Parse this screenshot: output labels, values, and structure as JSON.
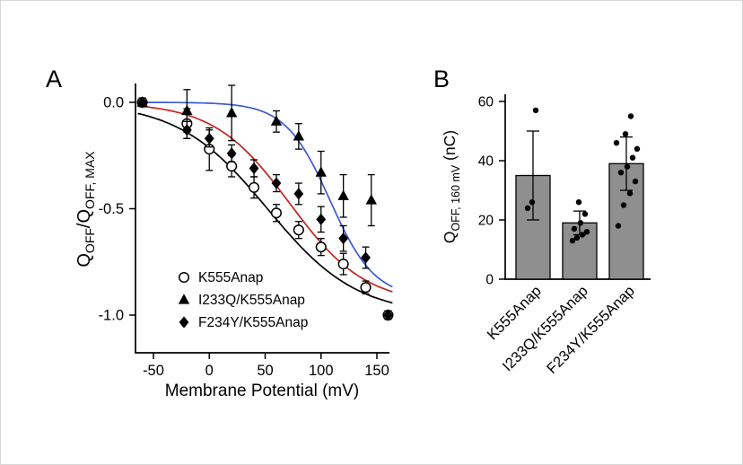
{
  "panel_labels": {
    "a": "A",
    "b": "B"
  },
  "chart_data": [
    {
      "type": "scatter",
      "panel": "A",
      "xlabel": "Membrane Potential (mV)",
      "ylabel": "QOFF/QOFF, MAX",
      "ylabel_parts": [
        {
          "t": "Q"
        },
        {
          "t": "OFF",
          "sub": true
        },
        {
          "t": "/Q"
        },
        {
          "t": "OFF, MAX",
          "sub": true
        }
      ],
      "xlim": [
        -70,
        172
      ],
      "ylim": [
        -1.08,
        0.13
      ],
      "x_ticks": [
        -50,
        0,
        50,
        100,
        150
      ],
      "y_ticks": [
        0,
        -0.5,
        -1
      ],
      "y_tick_labels": [
        "0.0",
        "-0.5",
        "-1.0"
      ],
      "grid": false,
      "legend_position": "inside-lower-left",
      "series": [
        {
          "name": "K555Anap",
          "marker": "circle-open",
          "marker_color": "#000000",
          "line_color": "#000000",
          "fit": {
            "v_half": 52,
            "k": 40,
            "amp": 1.0
          },
          "x": [
            -60,
            -20,
            0,
            20,
            40,
            60,
            80,
            100,
            120,
            140,
            160
          ],
          "y": [
            0,
            -0.1,
            -0.22,
            -0.3,
            -0.4,
            -0.52,
            -0.6,
            -0.68,
            -0.76,
            -0.87,
            -1
          ],
          "err": [
            0.02,
            0.07,
            0.1,
            0.05,
            0.05,
            0.04,
            0.04,
            0.04,
            0.05,
            0.03,
            0.02
          ]
        },
        {
          "name": "I233Q/K555Anap",
          "marker": "triangle-filled",
          "marker_color": "#000000",
          "line_color": "#3c5bd1",
          "fit": {
            "v_half": 108,
            "k": 20,
            "amp": 0.92
          },
          "x": [
            -60,
            -20,
            20,
            60,
            80,
            100,
            120,
            145
          ],
          "y": [
            0,
            -0.04,
            -0.05,
            -0.09,
            -0.16,
            -0.33,
            -0.44,
            -0.46
          ],
          "err": [
            0.02,
            0.1,
            0.13,
            0.05,
            0.06,
            0.1,
            0.1,
            0.12
          ]
        },
        {
          "name": "F234Y/K555Anap",
          "marker": "diamond-filled",
          "marker_color": "#000000",
          "line_color": "#c1271d",
          "fit": {
            "v_half": 72,
            "k": 34,
            "amp": 0.95
          },
          "x": [
            -60,
            -20,
            0,
            20,
            40,
            60,
            80,
            100,
            120,
            140,
            160
          ],
          "y": [
            0,
            -0.13,
            -0.17,
            -0.24,
            -0.31,
            -0.38,
            -0.43,
            -0.55,
            -0.64,
            -0.73,
            -1
          ],
          "err": [
            0.02,
            0.04,
            0.04,
            0.04,
            0.04,
            0.04,
            0.05,
            0.06,
            0.06,
            0.05,
            0.02
          ]
        }
      ]
    },
    {
      "type": "bar",
      "panel": "B",
      "ylabel": "QOFF, 160 mV (nC)",
      "ylabel_parts": [
        {
          "t": "Q"
        },
        {
          "t": "OFF, 160 mV",
          "sub": true
        },
        {
          "t": " (nC)"
        }
      ],
      "categories": [
        "K555Anap",
        "I233Q/K555Anap",
        "F234Y/K555Anap"
      ],
      "values": [
        35,
        19,
        39
      ],
      "errors": [
        15,
        4,
        9
      ],
      "points": [
        [
          24,
          26,
          57
        ],
        [
          13,
          14,
          15,
          16,
          17,
          19,
          22,
          26
        ],
        [
          18,
          25,
          29,
          33,
          36,
          38,
          41,
          44,
          46,
          49,
          55
        ]
      ],
      "ylim": [
        0,
        60
      ],
      "y_ticks": [
        0,
        20,
        40,
        60
      ],
      "bar_color": "#8f8f8f",
      "point_color": "#000000"
    }
  ]
}
